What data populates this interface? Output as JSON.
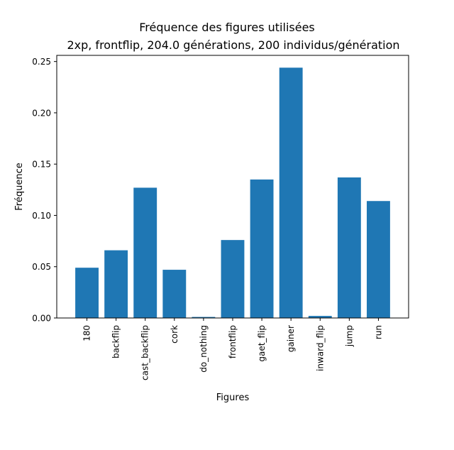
{
  "chart_data": {
    "type": "bar",
    "title": "Fréquence des figures utilisées",
    "subtitle": "2xp, frontflip, 204.0 générations, 200 individus/génération",
    "xlabel": "Figures",
    "ylabel": "Fréquence",
    "categories": [
      "180",
      "backflip",
      "cast_backflip",
      "cork",
      "do_nothing",
      "frontflip",
      "gaet_flip",
      "gainer",
      "inward_flip",
      "jump",
      "run"
    ],
    "values": [
      0.049,
      0.066,
      0.127,
      0.047,
      0.001,
      0.076,
      0.135,
      0.244,
      0.002,
      0.137,
      0.114
    ],
    "ylim": [
      0,
      0.256
    ],
    "yticks": [
      "0.00",
      "0.05",
      "0.10",
      "0.15",
      "0.20",
      "0.25"
    ],
    "ytick_values": [
      0,
      0.05,
      0.1,
      0.15,
      0.2,
      0.25
    ],
    "bar_color": "#1f77b4",
    "grid": false
  }
}
